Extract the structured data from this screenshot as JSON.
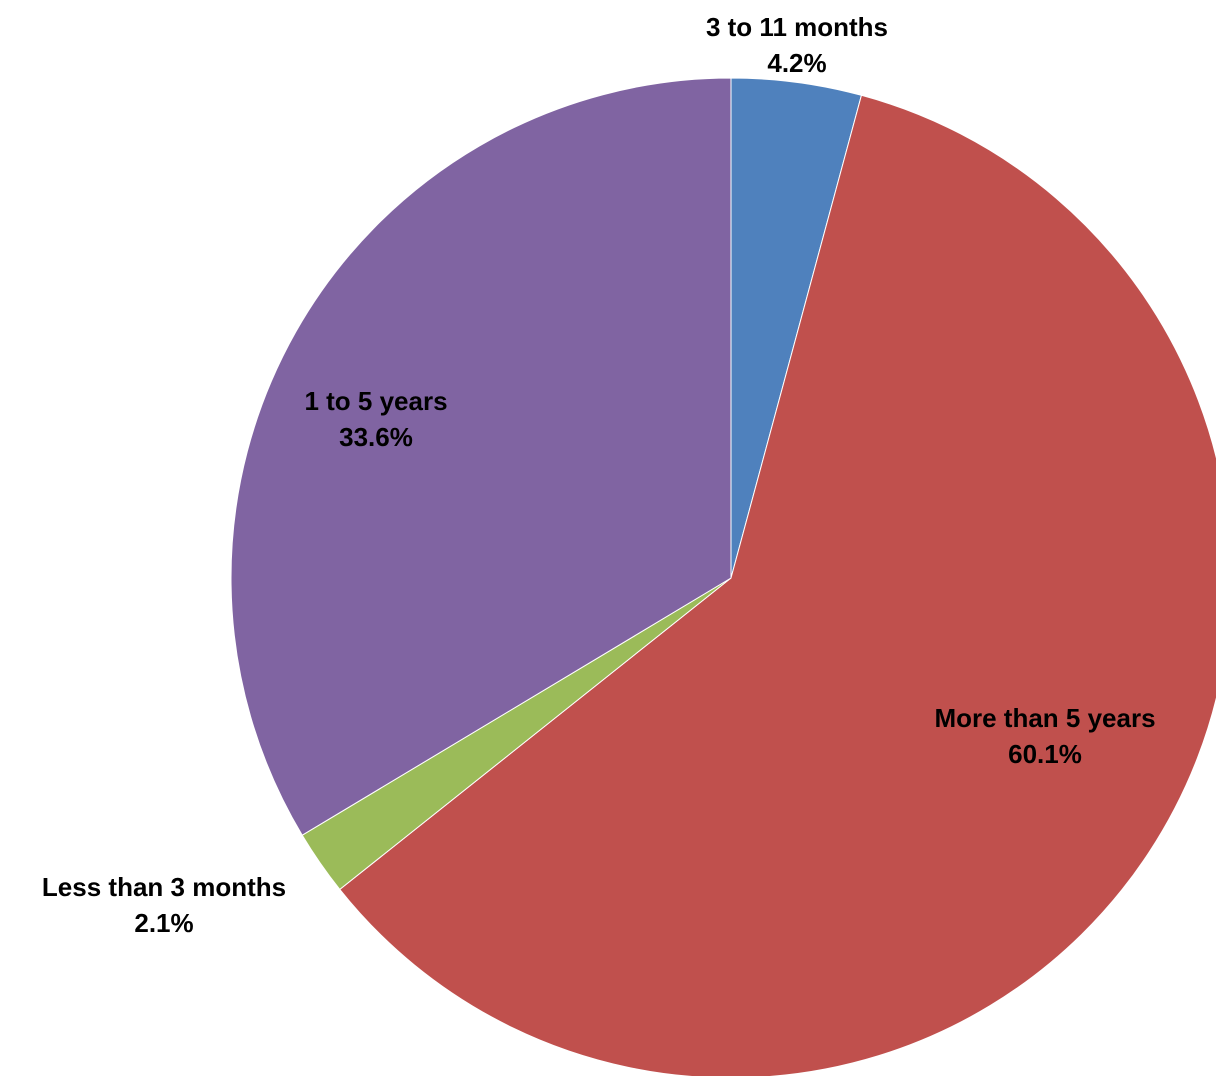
{
  "chart_data": {
    "type": "pie",
    "slices": [
      {
        "label": "3 to 11 months",
        "value": 4.2,
        "value_label": "4.2%",
        "color": "#4F81BD"
      },
      {
        "label": "More than 5 years",
        "value": 60.1,
        "value_label": "60.1%",
        "color": "#C0504D"
      },
      {
        "label": "Less than 3 months",
        "value": 2.1,
        "value_label": "2.1%",
        "color": "#9BBB59"
      },
      {
        "label": "1 to 5 years",
        "value": 33.6,
        "value_label": "33.6%",
        "color": "#8064A2"
      }
    ],
    "start_angle": "12 o'clock",
    "direction": "clockwise",
    "legend": "none",
    "labels": "category name and percentage"
  }
}
